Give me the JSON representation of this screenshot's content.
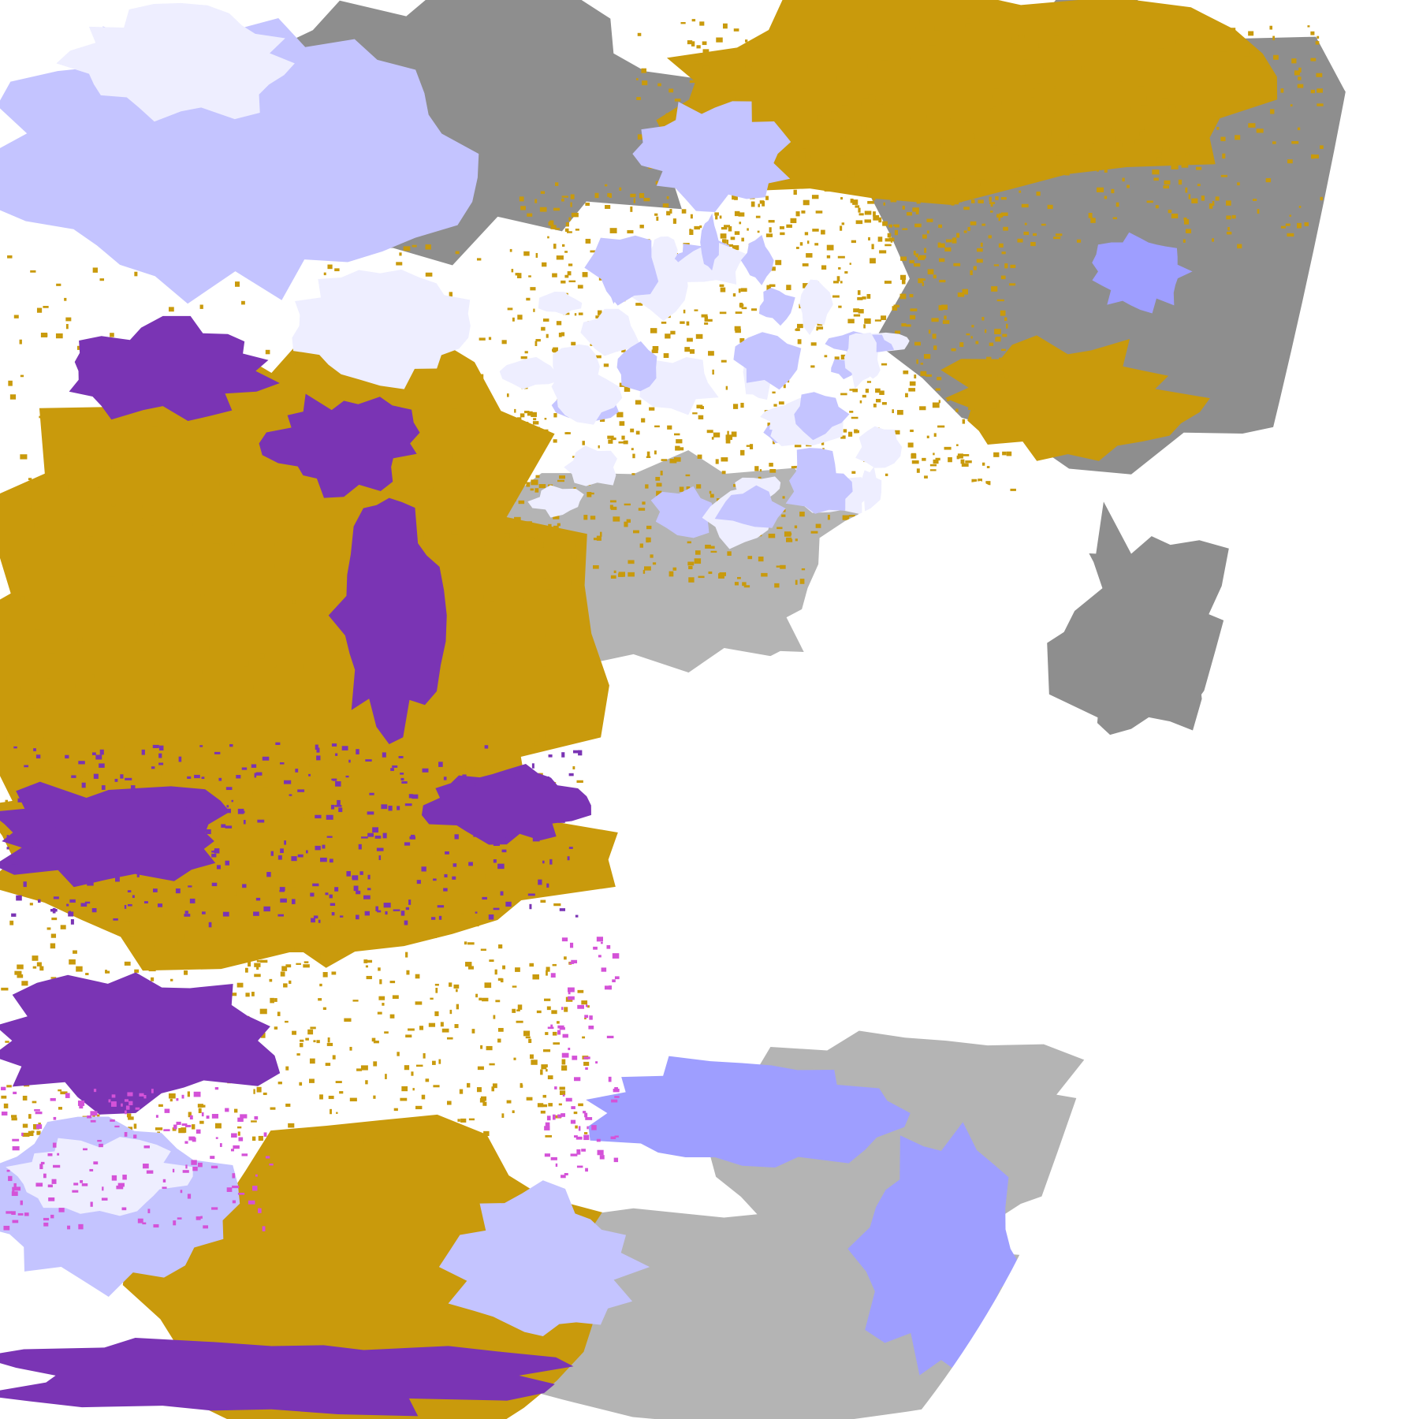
{
  "image": {
    "background": "#ffffff",
    "palette": {
      "gold": "#c99a0c",
      "purple": "#7a34b4",
      "magenta": "#d452d8",
      "lavender": "#c4c4ff",
      "pale": "#eeeeff",
      "periwinkle": "#9e9eff",
      "gray": "#8e8e8e",
      "lightgray": "#b4b4b4"
    }
  }
}
